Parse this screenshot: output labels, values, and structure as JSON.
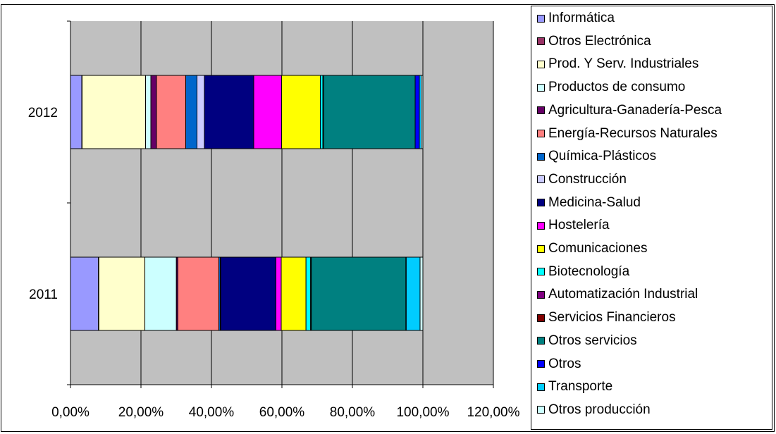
{
  "chart_data": {
    "type": "bar",
    "orientation": "horizontal",
    "stacked": "percent",
    "categories": [
      "2011",
      "2012"
    ],
    "series": [
      {
        "name": "Informática",
        "color": "#9999FF",
        "values": [
          7.9,
          3.2
        ]
      },
      {
        "name": "Otros Electrónica",
        "color": "#993366",
        "values": [
          0.1,
          0.1
        ]
      },
      {
        "name": "Prod. Y Serv. Industriales",
        "color": "#FFFFCC",
        "values": [
          13.0,
          18.0
        ]
      },
      {
        "name": "Productos de consumo",
        "color": "#CCFFFF",
        "values": [
          8.9,
          1.5
        ]
      },
      {
        "name": "Agricultura-Ganadería-Pesca",
        "color": "#660066",
        "values": [
          0.4,
          1.6
        ]
      },
      {
        "name": "Energía-Recursos Naturales",
        "color": "#FF8080",
        "values": [
          11.6,
          8.3
        ]
      },
      {
        "name": "Química-Plásticos",
        "color": "#0066CC",
        "values": [
          0.4,
          3.2
        ]
      },
      {
        "name": "Construcción",
        "color": "#CCCCFF",
        "values": [
          0.1,
          2.1
        ]
      },
      {
        "name": "Medicina-Salud",
        "color": "#000080",
        "values": [
          15.6,
          14.0
        ]
      },
      {
        "name": "Hostelería",
        "color": "#FF00FF",
        "values": [
          1.5,
          7.9
        ]
      },
      {
        "name": "Comunicaciones",
        "color": "#FFFF00",
        "values": [
          7.0,
          11.0
        ]
      },
      {
        "name": "Biotecnología",
        "color": "#00FFFF",
        "values": [
          1.3,
          0.7
        ]
      },
      {
        "name": "Automatización Industrial",
        "color": "#800080",
        "values": [
          0.1,
          0.1
        ]
      },
      {
        "name": "Servicios Financieros",
        "color": "#800000",
        "values": [
          0.1,
          0.1
        ]
      },
      {
        "name": "Otros servicios",
        "color": "#008080",
        "values": [
          26.7,
          26.0
        ]
      },
      {
        "name": "Otros",
        "color": "#0000FF",
        "values": [
          0.1,
          1.2
        ]
      },
      {
        "name": "Transporte",
        "color": "#00CCFF",
        "values": [
          3.9,
          0.5
        ]
      },
      {
        "name": "Otros producción",
        "color": "#CCFFFF",
        "values": [
          0.8,
          0.5
        ]
      }
    ],
    "x_tick_labels": [
      "0,00%",
      "20,00%",
      "40,00%",
      "60,00%",
      "80,00%",
      "100,00%",
      "120,00%"
    ],
    "y_tick_labels": [
      "2011",
      "2012"
    ],
    "xlim": [
      0,
      120
    ],
    "plot_background": "#C0C0C0",
    "grid": true,
    "legend_position": "right"
  }
}
